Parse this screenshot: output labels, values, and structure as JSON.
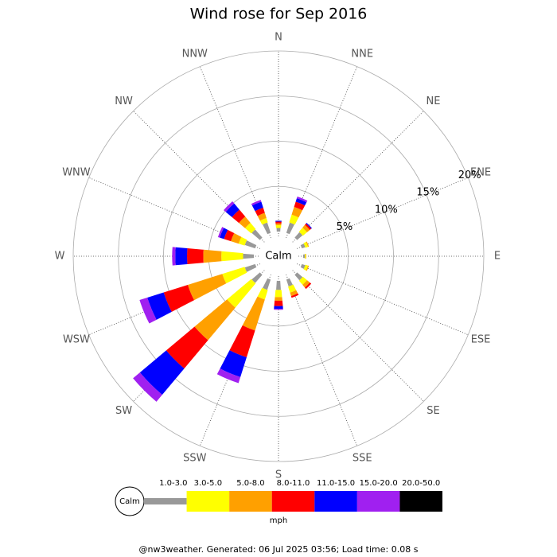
{
  "chart_data": {
    "type": "wind_rose",
    "title": "Wind rose for Sep 2016",
    "categories": [
      "N",
      "NNE",
      "NE",
      "ENE",
      "E",
      "ESE",
      "SE",
      "SSE",
      "S",
      "SSW",
      "SW",
      "WSW",
      "W",
      "WNW",
      "NW",
      "NNW"
    ],
    "rlim": [
      0,
      20
    ],
    "rticks": [
      {
        "value": 5,
        "label": "5%"
      },
      {
        "value": 10,
        "label": "10%"
      },
      {
        "value": 15,
        "label": "15%"
      },
      {
        "value": 20,
        "label": "20%"
      }
    ],
    "calm_label": "Calm",
    "unit": "mph",
    "series": [
      {
        "name": "1.0-3.0",
        "color": "#999999",
        "values": [
          0.4,
          1.2,
          0.8,
          0.4,
          0.2,
          0.4,
          0.8,
          0.8,
          1.0,
          1.2,
          1.2,
          1.2,
          1.2,
          1.2,
          1.2,
          1.2
        ]
      },
      {
        "name": "3.0-5.0",
        "color": "#ffff00",
        "values": [
          0.3,
          0.9,
          0.6,
          0.3,
          0.1,
          0.3,
          0.6,
          0.7,
          0.8,
          1.1,
          3.5,
          2.6,
          2.4,
          0.7,
          0.9,
          0.5
        ]
      },
      {
        "name": "5.0-8.0",
        "color": "#ffa000",
        "values": [
          0.2,
          0.9,
          0.4,
          0.1,
          0.05,
          0.1,
          0.4,
          0.4,
          0.4,
          3.6,
          4.7,
          4.0,
          2.0,
          0.9,
          0.9,
          0.6
        ]
      },
      {
        "name": "8.0-11.0",
        "color": "#ff0000",
        "values": [
          0.2,
          0.6,
          0.2,
          0,
          0,
          0,
          0.2,
          0.2,
          0.6,
          3.1,
          4.1,
          2.8,
          1.8,
          0.8,
          1.0,
          0.6
        ]
      },
      {
        "name": "11.0-15.0",
        "color": "#0000ff",
        "values": [
          0.1,
          0.4,
          0.1,
          0,
          0,
          0,
          0,
          0,
          0.3,
          2.3,
          3.8,
          1.9,
          1.3,
          0.5,
          0.9,
          0.7
        ]
      },
      {
        "name": "15.0-20.0",
        "color": "#a020f0",
        "values": [
          0,
          0.2,
          0,
          0,
          0,
          0,
          0,
          0,
          0.1,
          0.7,
          1.0,
          0.9,
          0.35,
          0.2,
          0.3,
          0.2
        ]
      },
      {
        "name": "20.0-50.0",
        "color": "#000000",
        "values": [
          0,
          0,
          0,
          0,
          0,
          0,
          0,
          0,
          0,
          0,
          0,
          0,
          0,
          0,
          0,
          0
        ]
      }
    ]
  },
  "footer": "@nw3weather. Generated: 06 Jul 2025 03:56; Load time: 0.08 s"
}
